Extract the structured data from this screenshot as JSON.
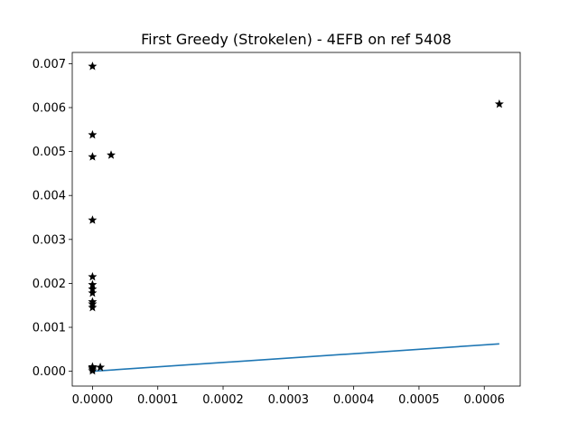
{
  "chart_data": {
    "type": "scatter",
    "title": "First Greedy (Strokelen) - 4EFB on ref 5408",
    "xlabel": "",
    "ylabel": "",
    "xlim": [
      -3.1e-05,
      0.000655
    ],
    "ylim": [
      -0.000337,
      0.007255
    ],
    "grid": false,
    "x_ticks": [
      0.0,
      0.0001,
      0.0002,
      0.0003,
      0.0004,
      0.0005,
      0.0006
    ],
    "x_tick_labels": [
      "0.0000",
      "0.0001",
      "0.0002",
      "0.0003",
      "0.0004",
      "0.0005",
      "0.0006"
    ],
    "y_ticks": [
      0.0,
      0.001,
      0.002,
      0.003,
      0.004,
      0.005,
      0.006,
      0.007
    ],
    "y_tick_labels": [
      "0.000",
      "0.001",
      "0.002",
      "0.003",
      "0.004",
      "0.005",
      "0.006",
      "0.007"
    ],
    "series": [
      {
        "kind": "scatter",
        "marker": "star",
        "color": "#000000",
        "points": [
          {
            "x": 0.0,
            "y": 0.00694
          },
          {
            "x": 0.0,
            "y": 0.00538
          },
          {
            "x": 0.0,
            "y": 0.00488
          },
          {
            "x": 2.85e-05,
            "y": 0.00492
          },
          {
            "x": 0.0,
            "y": 0.00344
          },
          {
            "x": 0.0,
            "y": 0.00215
          },
          {
            "x": 0.0,
            "y": 0.00197
          },
          {
            "x": 0.0,
            "y": 0.00187
          },
          {
            "x": 0.0,
            "y": 0.00178
          },
          {
            "x": 0.0,
            "y": 0.00158
          },
          {
            "x": 0.0,
            "y": 0.00153
          },
          {
            "x": 0.0,
            "y": 0.00145
          },
          {
            "x": 0.0,
            "y": 0.0001
          },
          {
            "x": 0.0,
            "y": 8e-05
          },
          {
            "x": 0.0,
            "y": 5e-05
          },
          {
            "x": 0.0,
            "y": 1e-05
          },
          {
            "x": 1.2e-05,
            "y": 9e-05
          },
          {
            "x": 0.000623,
            "y": 0.00608
          }
        ]
      },
      {
        "kind": "line",
        "color": "#1f77b4",
        "points": [
          {
            "x": 0.0,
            "y": 0.0
          },
          {
            "x": 0.000623,
            "y": 0.000623
          }
        ]
      }
    ]
  }
}
